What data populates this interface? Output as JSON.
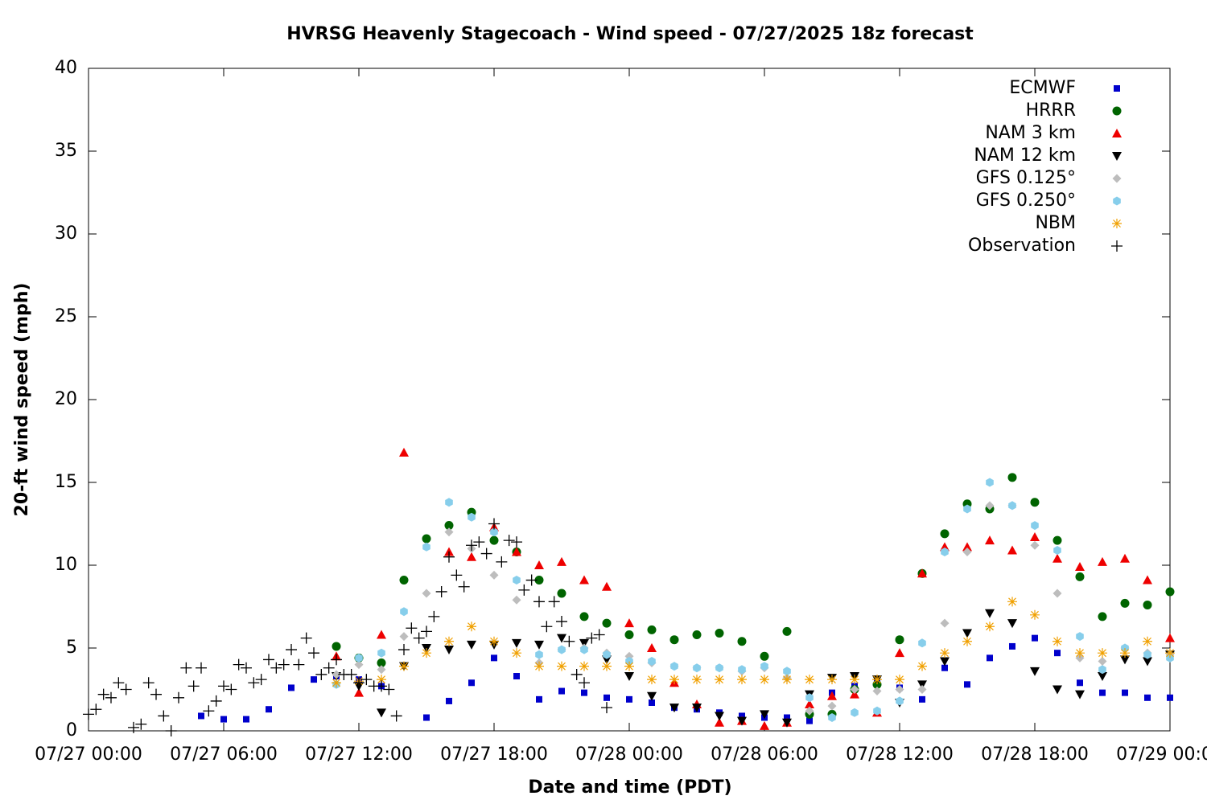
{
  "chart_data": {
    "type": "scatter",
    "title": "HVRSG Heavenly Stagecoach - Wind speed - 07/27/2025 18z forecast",
    "xlabel": "Date and time (PDT)",
    "ylabel": "20-ft wind speed (mph)",
    "xlim": [
      "07/27 00:00",
      "07/29 00:00"
    ],
    "xticks": [
      "07/27 00:00",
      "07/27 06:00",
      "07/27 12:00",
      "07/27 18:00",
      "07/28 00:00",
      "07/28 06:00",
      "07/28 12:00",
      "07/28 18:00",
      "07/29 00:00"
    ],
    "ylim": [
      0,
      40
    ],
    "yticks": [
      0,
      5,
      10,
      15,
      20,
      25,
      30,
      35,
      40
    ],
    "legend": "top-right",
    "x": [
      "07/27 05:00",
      "07/27 06:00",
      "07/27 07:00",
      "07/27 08:00",
      "07/27 09:00",
      "07/27 10:00",
      "07/27 11:00",
      "07/27 12:00",
      "07/27 13:00",
      "07/27 14:00",
      "07/27 15:00",
      "07/27 16:00",
      "07/27 17:00",
      "07/27 18:00",
      "07/27 19:00",
      "07/27 20:00",
      "07/27 21:00",
      "07/27 22:00",
      "07/27 23:00",
      "07/28 00:00",
      "07/28 01:00",
      "07/28 02:00",
      "07/28 03:00",
      "07/28 04:00",
      "07/28 05:00",
      "07/28 06:00",
      "07/28 07:00",
      "07/28 08:00",
      "07/28 09:00",
      "07/28 10:00",
      "07/28 11:00",
      "07/28 12:00",
      "07/28 13:00",
      "07/28 14:00",
      "07/28 15:00",
      "07/28 16:00",
      "07/28 17:00",
      "07/28 18:00",
      "07/28 19:00",
      "07/28 20:00",
      "07/28 21:00",
      "07/28 22:00",
      "07/28 23:00",
      "07/29 00:00"
    ],
    "series": [
      {
        "name": "ECMWF",
        "color": "#0000cc",
        "marker": "square",
        "values": [
          0.9,
          0.7,
          0.7,
          1.3,
          2.6,
          3.1,
          3.3,
          3.1,
          2.7,
          null,
          0.8,
          1.8,
          2.9,
          4.4,
          3.3,
          1.9,
          2.4,
          2.3,
          2.0,
          1.9,
          1.7,
          1.4,
          1.3,
          1.1,
          0.9,
          0.8,
          0.8,
          0.6,
          2.3,
          2.7,
          2.9,
          2.6,
          1.9,
          3.8,
          2.8,
          4.4,
          5.1,
          5.6,
          4.7,
          2.9,
          2.3,
          2.3,
          2.0,
          2.0
        ]
      },
      {
        "name": "HRRR",
        "color": "#006400",
        "marker": "circle",
        "values": [
          null,
          null,
          null,
          null,
          null,
          null,
          5.1,
          4.4,
          4.1,
          9.1,
          11.6,
          12.4,
          13.2,
          11.5,
          10.8,
          9.1,
          8.3,
          6.9,
          6.5,
          5.8,
          6.1,
          5.5,
          5.8,
          5.9,
          5.4,
          4.5,
          6.0,
          1.0,
          1.0,
          2.5,
          2.8,
          5.5,
          9.5,
          11.9,
          13.7,
          13.4,
          15.3,
          13.8,
          11.5,
          9.3,
          6.9,
          7.7,
          7.6,
          8.4
        ]
      },
      {
        "name": "NAM 3 km",
        "color": "#ee0000",
        "marker": "triangle",
        "values": [
          null,
          null,
          null,
          null,
          null,
          null,
          4.5,
          2.3,
          5.8,
          16.8,
          null,
          10.8,
          10.5,
          12.3,
          10.8,
          10.0,
          10.2,
          9.1,
          8.7,
          6.5,
          5.0,
          2.9,
          1.6,
          0.5,
          0.6,
          0.3,
          0.5,
          1.6,
          2.1,
          2.2,
          1.1,
          4.7,
          9.5,
          11.1,
          11.1,
          11.5,
          10.9,
          11.7,
          10.4,
          9.9,
          10.2,
          10.4,
          9.1,
          5.6
        ]
      },
      {
        "name": "NAM 12 km",
        "color": "#000000",
        "marker": "triangle-down",
        "values": [
          null,
          null,
          null,
          null,
          null,
          null,
          3.3,
          2.7,
          1.1,
          3.9,
          5.0,
          4.9,
          5.2,
          5.2,
          5.3,
          5.2,
          5.6,
          5.3,
          4.3,
          3.3,
          2.1,
          1.4,
          1.4,
          0.9,
          0.6,
          1.0,
          0.5,
          2.2,
          3.2,
          3.3,
          3.1,
          1.7,
          2.8,
          4.2,
          5.9,
          7.1,
          6.5,
          3.6,
          2.5,
          2.2,
          3.3,
          4.3,
          4.2,
          4.6
        ]
      },
      {
        "name": "GFS 0.125°",
        "color": "#bdbdbd",
        "marker": "diamond",
        "values": [
          null,
          null,
          null,
          null,
          null,
          null,
          3.4,
          4.0,
          3.7,
          5.7,
          8.3,
          12.0,
          11.0,
          9.4,
          7.9,
          4.1,
          4.9,
          5.0,
          4.7,
          4.5,
          4.1,
          3.9,
          3.8,
          3.8,
          3.6,
          3.8,
          3.2,
          1.2,
          1.5,
          2.5,
          2.4,
          2.5,
          2.5,
          6.5,
          10.8,
          13.6,
          13.6,
          11.2,
          8.3,
          4.4,
          4.2,
          5.0,
          4.7,
          4.6
        ]
      },
      {
        "name": "GFS 0.250°",
        "color": "#87ceeb",
        "marker": "hexagon",
        "values": [
          null,
          null,
          null,
          null,
          null,
          null,
          2.8,
          4.4,
          4.7,
          7.2,
          11.1,
          13.8,
          12.9,
          12.0,
          9.1,
          4.6,
          4.9,
          4.9,
          4.6,
          4.2,
          4.2,
          3.9,
          3.8,
          3.8,
          3.7,
          3.9,
          3.6,
          2.0,
          0.8,
          1.1,
          1.2,
          1.8,
          5.3,
          10.8,
          13.4,
          15.0,
          13.6,
          12.4,
          10.9,
          5.7,
          3.7,
          5.0,
          4.6,
          4.4
        ]
      },
      {
        "name": "NBM",
        "color": "#f0a000",
        "marker": "asterisk",
        "values": [
          null,
          null,
          null,
          null,
          null,
          null,
          2.9,
          3.0,
          3.1,
          3.9,
          4.7,
          5.4,
          6.3,
          5.4,
          4.7,
          3.9,
          3.9,
          3.9,
          3.9,
          3.9,
          3.1,
          3.1,
          3.1,
          3.1,
          3.1,
          3.1,
          3.1,
          3.1,
          3.1,
          3.1,
          3.1,
          3.1,
          3.9,
          4.7,
          5.4,
          6.3,
          7.8,
          7.0,
          5.4,
          4.7,
          4.7,
          4.7,
          5.4,
          4.7
        ]
      },
      {
        "name": "Observation",
        "color": "#000000",
        "marker": "plus",
        "x": [
          "07/27 00:00",
          "07/27 00:20",
          "07/27 00:40",
          "07/27 01:00",
          "07/27 01:20",
          "07/27 01:40",
          "07/27 02:00",
          "07/27 02:20",
          "07/27 02:40",
          "07/27 03:00",
          "07/27 03:20",
          "07/27 03:40",
          "07/27 04:00",
          "07/27 04:20",
          "07/27 04:40",
          "07/27 05:00",
          "07/27 05:20",
          "07/27 05:40",
          "07/27 06:00",
          "07/27 06:20",
          "07/27 06:40",
          "07/27 07:00",
          "07/27 07:20",
          "07/27 07:40",
          "07/27 08:00",
          "07/27 08:20",
          "07/27 08:40",
          "07/27 09:00",
          "07/27 09:20",
          "07/27 09:40",
          "07/27 10:00",
          "07/27 10:20",
          "07/27 10:40",
          "07/27 11:00",
          "07/27 11:20",
          "07/27 11:40",
          "07/27 12:00",
          "07/27 12:20",
          "07/27 12:40",
          "07/27 13:00",
          "07/27 13:20",
          "07/27 13:40",
          "07/27 14:00",
          "07/27 14:20",
          "07/27 14:40",
          "07/27 15:00",
          "07/27 15:20",
          "07/27 15:40",
          "07/27 16:00",
          "07/27 16:20",
          "07/27 16:40",
          "07/27 17:00",
          "07/27 17:20",
          "07/27 17:40",
          "07/27 18:00",
          "07/27 18:20",
          "07/27 18:40",
          "07/27 19:00",
          "07/27 19:20",
          "07/27 19:40",
          "07/27 20:00",
          "07/27 20:20",
          "07/27 20:40",
          "07/27 21:00",
          "07/27 21:20",
          "07/27 21:40",
          "07/27 22:00",
          "07/27 22:20",
          "07/27 22:40",
          "07/27 23:00"
        ],
        "values": [
          1.0,
          1.3,
          2.2,
          2.0,
          2.9,
          2.5,
          0.2,
          0.4,
          2.9,
          2.2,
          0.9,
          0.0,
          2.0,
          3.8,
          2.7,
          3.8,
          1.2,
          1.8,
          2.7,
          2.5,
          4.0,
          3.8,
          2.9,
          3.1,
          4.3,
          3.8,
          4.0,
          4.9,
          4.0,
          5.6,
          4.7,
          3.4,
          3.8,
          4.3,
          3.4,
          3.4,
          2.9,
          3.1,
          2.7,
          2.7,
          2.5,
          0.9,
          4.9,
          6.2,
          5.6,
          6.0,
          6.9,
          8.4,
          10.5,
          9.4,
          8.7,
          11.2,
          11.4,
          10.7,
          12.5,
          10.2,
          11.5,
          11.4,
          8.5,
          9.1,
          7.8,
          6.3,
          7.8,
          6.6,
          5.4,
          3.4,
          2.9,
          5.6,
          5.8,
          1.4
        ]
      }
    ]
  }
}
